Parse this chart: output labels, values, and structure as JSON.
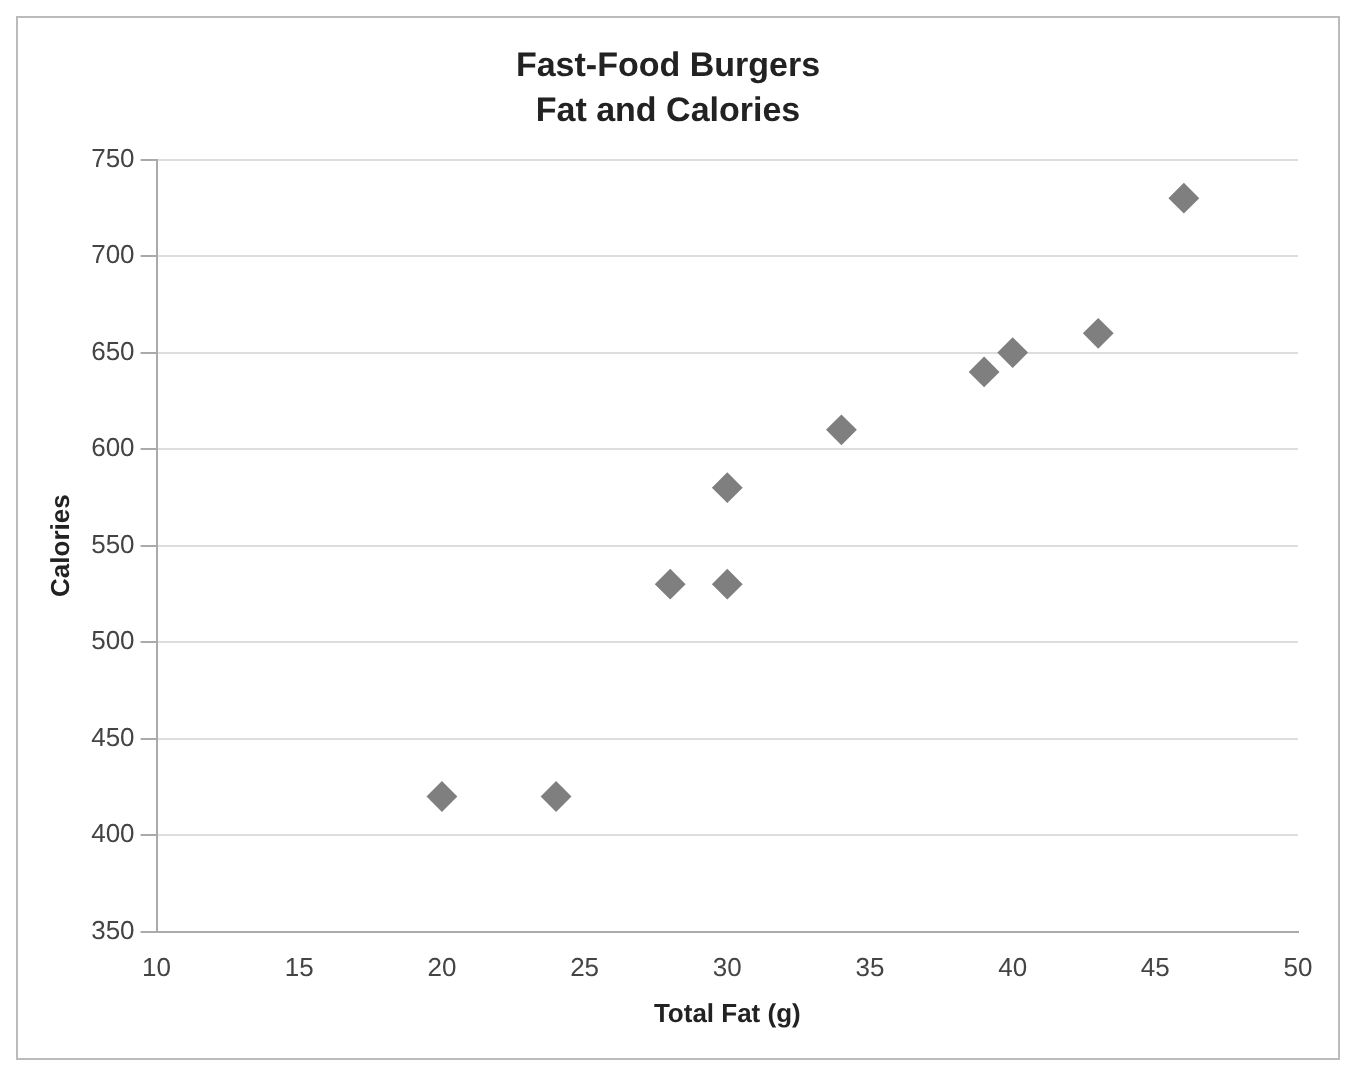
{
  "chart_data": {
    "type": "scatter",
    "title": "Fast-Food Burgers",
    "subtitle": "Fat and Calories",
    "xlabel": "Total Fat (g)",
    "ylabel": "Calories",
    "x": [
      20,
      24,
      28,
      30,
      30,
      34,
      39,
      40,
      43,
      46
    ],
    "series": [
      {
        "color": "#7f7f7f",
        "values": [
          420,
          420,
          530,
          530,
          580,
          610,
          640,
          650,
          660,
          730
        ]
      }
    ],
    "xlim": [
      10,
      50
    ],
    "xticks": [
      10,
      15,
      20,
      25,
      30,
      35,
      40,
      45,
      50
    ],
    "ylim": [
      350,
      750
    ],
    "yticks": [
      350,
      400,
      450,
      500,
      550,
      600,
      650,
      700,
      750
    ],
    "grid": "y",
    "marker": "diamond",
    "legend": false
  }
}
